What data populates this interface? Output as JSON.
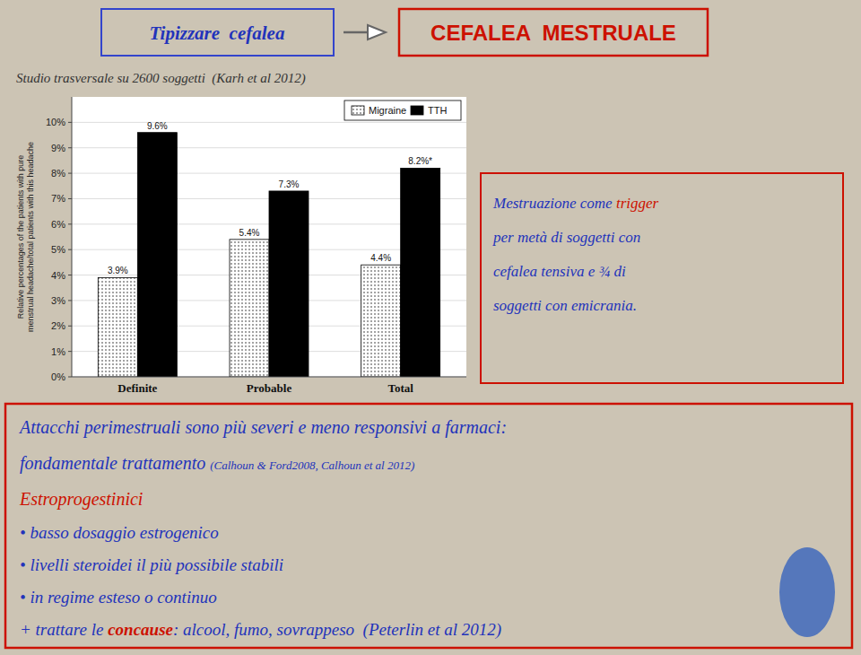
{
  "chart_data": {
    "type": "bar",
    "subtitle": "Studio trasversale su 2600 soggetti  (Karh et al 2012)",
    "categories": [
      "Definite",
      "Probable",
      "Total"
    ],
    "series": [
      {
        "name": "Migraine",
        "color": "white",
        "values": [
          3.9,
          5.4,
          4.4
        ],
        "value_labels": [
          "3.9%",
          "5.4%",
          "4.4%"
        ]
      },
      {
        "name": "TTH",
        "color": "black",
        "values": [
          9.6,
          7.3,
          8.2
        ],
        "value_labels": [
          "9.6%",
          "7.3%",
          "8.2%*"
        ]
      }
    ],
    "ylabel": "Relative percentages of the patients with pure\nmenstrual headache/total patients with this headache",
    "ylim": [
      0,
      11
    ],
    "yticks": [
      {
        "value": 0,
        "label": "0%"
      },
      {
        "value": 1,
        "label": "1%"
      },
      {
        "value": 2,
        "label": "2%"
      },
      {
        "value": 3,
        "label": "3%"
      },
      {
        "value": 4,
        "label": "4%"
      },
      {
        "value": 5,
        "label": "5%"
      },
      {
        "value": 6,
        "label": "6%"
      },
      {
        "value": 7,
        "label": "7%"
      },
      {
        "value": 8,
        "label": "8%"
      },
      {
        "value": 9,
        "label": "9%"
      },
      {
        "value": 10,
        "label": "10%"
      }
    ],
    "grid": true,
    "legend": "upper right",
    "data_labels": true,
    "annotations": [
      "Tipizzare  cefalea",
      "CEFALEA  MESTRUALE",
      "Mestruazione come ",
      "trigger",
      "per metà di soggetti con",
      "cefalea tensiva e ¾ di",
      "soggetti con emicrania.",
      "Attacchi perimestruali sono più severi e meno responsivi a farmaci:",
      "fondamentale trattamento ",
      "(Calhoun & Ford2008, Calhoun et al 2012)",
      "Estroprogestinici",
      "• basso dosaggio estrogenico",
      "• livelli steroidei il più possibile stabili",
      "• in regime esteso o continuo",
      "+ trattare le ",
      "concause",
      ": alcool, fumo, sovrappeso  (Peterlin et al 2012)"
    ]
  }
}
